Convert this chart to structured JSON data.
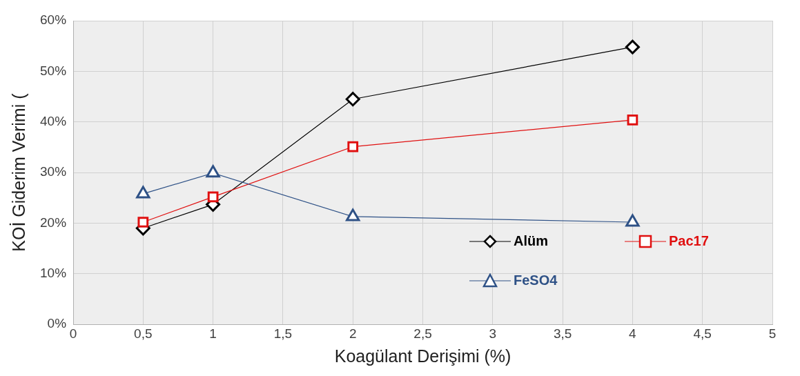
{
  "chart_data": {
    "type": "line",
    "xlabel": "Koagülant Derişimi (%)",
    "ylabel": "KOİ Giderim Verimi (",
    "series": [
      {
        "name": "Alüm",
        "color": "#000000",
        "marker": "diamond",
        "x": [
          0.5,
          1,
          2,
          4
        ],
        "values": [
          19.0,
          23.7,
          44.5,
          54.8
        ]
      },
      {
        "name": "Pac17",
        "color": "#e01010",
        "marker": "square",
        "x": [
          0.5,
          1,
          2,
          4
        ],
        "values": [
          20.2,
          25.2,
          35.1,
          40.4
        ]
      },
      {
        "name": "FeSO4",
        "color": "#2e5186",
        "marker": "triangle",
        "x": [
          0.5,
          1,
          2,
          4
        ],
        "values": [
          25.8,
          29.9,
          21.3,
          20.2
        ]
      }
    ],
    "xlim": [
      0,
      5
    ],
    "xticks": [
      0,
      {
        "value": 0.5,
        "label": "0,5"
      },
      1,
      {
        "value": 1.5,
        "label": "1,5"
      },
      2,
      {
        "value": 2.5,
        "label": "2,5"
      },
      3,
      {
        "value": 3.5,
        "label": "3,5"
      },
      4,
      {
        "value": 4.5,
        "label": "4,5"
      },
      5
    ],
    "ylim": [
      0,
      60
    ],
    "yticks": [
      {
        "value": 0,
        "label": "0%"
      },
      {
        "value": 10,
        "label": "10%"
      },
      {
        "value": 20,
        "label": "20%"
      },
      {
        "value": 30,
        "label": "30%"
      },
      {
        "value": 40,
        "label": "40%"
      },
      {
        "value": 50,
        "label": "50%"
      },
      {
        "value": 60,
        "label": "60%"
      }
    ],
    "grid": true,
    "legend": "bottom right",
    "line_style": "solid"
  }
}
